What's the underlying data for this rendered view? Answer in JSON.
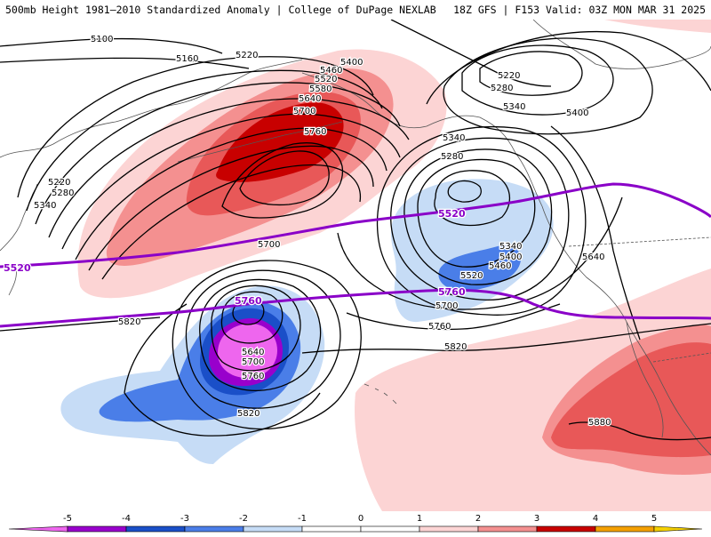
{
  "header": {
    "title_left": "500mb Height 1981–2010 Standardized Anomaly | College of DuPage NEXLAB",
    "title_right": "18Z GFS | F153 Valid: 03Z MON MAR 31 2025"
  },
  "colors": {
    "anom_neg5": "#ee66ee",
    "anom_neg4": "#9900cc",
    "anom_neg3": "#1a4fc8",
    "anom_neg2": "#4a7ee8",
    "anom_neg1": "#c6dcf6",
    "anom_pos1": "#fcd4d4",
    "anom_pos2": "#f49090",
    "anom_pos3": "#e85858",
    "anom_pos4": "#c80000",
    "anom_pos5": "#f4a000",
    "highlight_contour": "#8a00c8",
    "height_contour": "#000000",
    "coastline": "#555555"
  },
  "contour_labels": [
    {
      "id": "c5100",
      "text": "5100"
    },
    {
      "id": "c5160",
      "text": "5160"
    },
    {
      "id": "c5220a",
      "text": "5220"
    },
    {
      "id": "c5400a",
      "text": "5400"
    },
    {
      "id": "c5460a",
      "text": "5460"
    },
    {
      "id": "c5520a",
      "text": "5520"
    },
    {
      "id": "c5580a",
      "text": "5580"
    },
    {
      "id": "c5640a",
      "text": "5640"
    },
    {
      "id": "c5700a",
      "text": "5700"
    },
    {
      "id": "c5760a",
      "text": "5760"
    },
    {
      "id": "c5220b",
      "text": "5220"
    },
    {
      "id": "c5280b",
      "text": "5280"
    },
    {
      "id": "c5340b",
      "text": "5340"
    },
    {
      "id": "c5700b",
      "text": "5700"
    },
    {
      "id": "c5820a",
      "text": "5820"
    },
    {
      "id": "c5640c",
      "text": "5640"
    },
    {
      "id": "c5700c",
      "text": "5700"
    },
    {
      "id": "c5760c",
      "text": "5760"
    },
    {
      "id": "c5820c",
      "text": "5820"
    },
    {
      "id": "c5220d",
      "text": "5220"
    },
    {
      "id": "c5280d",
      "text": "5280"
    },
    {
      "id": "c5340d",
      "text": "5340"
    },
    {
      "id": "c5400d",
      "text": "5400"
    },
    {
      "id": "c5340e",
      "text": "5340"
    },
    {
      "id": "c5280e",
      "text": "5280"
    },
    {
      "id": "c5340f",
      "text": "5340"
    },
    {
      "id": "c5400f",
      "text": "5400"
    },
    {
      "id": "c5460f",
      "text": "5460"
    },
    {
      "id": "c5520f",
      "text": "5520"
    },
    {
      "id": "c5700f",
      "text": "5700"
    },
    {
      "id": "c5760f",
      "text": "5760"
    },
    {
      "id": "c5820f",
      "text": "5820"
    },
    {
      "id": "c5640g",
      "text": "5640"
    },
    {
      "id": "c5880",
      "text": "5880"
    }
  ],
  "highlight_labels": [
    {
      "id": "h5520a",
      "text": "5520"
    },
    {
      "id": "h5520b",
      "text": "5520"
    },
    {
      "id": "h5760a",
      "text": "5760"
    },
    {
      "id": "h5760b",
      "text": "5760"
    }
  ],
  "colorbar": {
    "ticks": [
      "-5",
      "-4",
      "-3",
      "-2",
      "-1",
      "0",
      "1",
      "2",
      "3",
      "4",
      "5"
    ]
  }
}
